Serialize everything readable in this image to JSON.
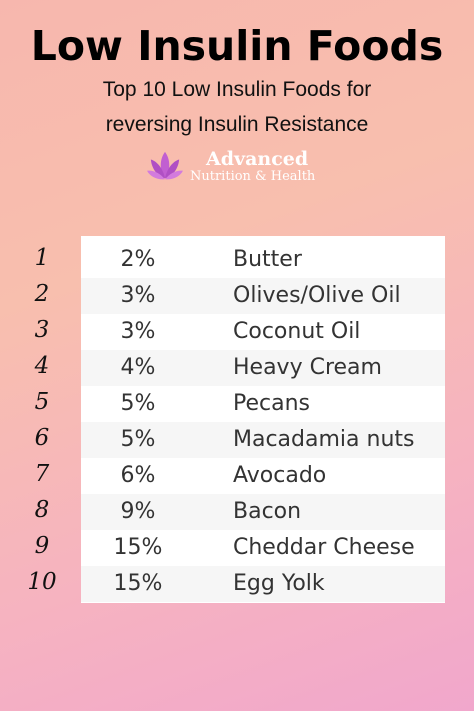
{
  "title": "Low Insulin Foods",
  "subtitle_line1": "Top 10 Low Insulin Foods for",
  "subtitle_line2": "reversing Insulin Resistance",
  "logo": {
    "line1": "Advanced",
    "line2": "Nutrition & Health",
    "icon": "lotus-icon",
    "icon_color": "#c15fd1"
  },
  "items": [
    {
      "rank": "1",
      "percent": "2%",
      "food": "Butter"
    },
    {
      "rank": "2",
      "percent": "3%",
      "food": "Olives/Olive Oil"
    },
    {
      "rank": "3",
      "percent": "3%",
      "food": "Coconut Oil"
    },
    {
      "rank": "4",
      "percent": "4%",
      "food": "Heavy Cream"
    },
    {
      "rank": "5",
      "percent": "5%",
      "food": "Pecans"
    },
    {
      "rank": "6",
      "percent": "5%",
      "food": "Macadamia nuts"
    },
    {
      "rank": "7",
      "percent": "6%",
      "food": "Avocado"
    },
    {
      "rank": "8",
      "percent": "9%",
      "food": "Bacon"
    },
    {
      "rank": "9",
      "percent": "15%",
      "food": "Cheddar Cheese"
    },
    {
      "rank": "10",
      "percent": "15%",
      "food": "Egg Yolk"
    }
  ]
}
